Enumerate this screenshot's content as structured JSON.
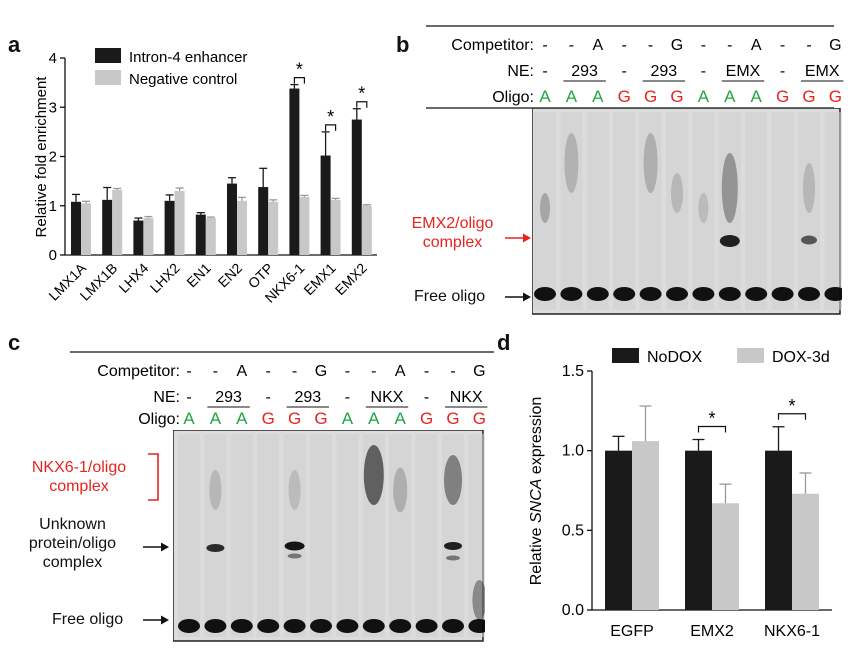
{
  "panels": {
    "a": "a",
    "b": "b",
    "c": "c",
    "d": "d"
  },
  "colors": {
    "dark_bar": "#1a1a1a",
    "light_bar": "#c8c8c8",
    "green": "#22a541",
    "red": "#e8231f"
  },
  "chart_data": [
    {
      "panel": "a",
      "type": "bar",
      "ylabel": "Relative fold enrichment",
      "ylim": [
        0,
        4
      ],
      "yticks": [
        "0",
        "1",
        "2",
        "3",
        "4"
      ],
      "categories": [
        "LMX1A",
        "LMX1B",
        "LHX4",
        "LHX2",
        "EN1",
        "EN2",
        "OTP",
        "NKX6-1",
        "EMX1",
        "EMX2"
      ],
      "series": [
        {
          "name": "Intron-4 enhancer",
          "color": "#1a1a1a",
          "values": [
            1.08,
            1.12,
            0.7,
            1.1,
            0.82,
            1.45,
            1.38,
            3.38,
            2.02,
            2.75
          ],
          "errors": [
            0.15,
            0.25,
            0.05,
            0.12,
            0.04,
            0.12,
            0.38,
            0.08,
            0.48,
            0.22
          ]
        },
        {
          "name": "Negative control",
          "color": "#c8c8c8",
          "values": [
            1.05,
            1.32,
            0.75,
            1.3,
            0.75,
            1.1,
            1.08,
            1.18,
            1.12,
            1.0
          ],
          "errors": [
            0.04,
            0.03,
            0.03,
            0.06,
            0.02,
            0.07,
            0.04,
            0.03,
            0.03,
            0.02
          ]
        }
      ],
      "significance": [
        "NKX6-1",
        "EMX1",
        "EMX2"
      ],
      "sig_mark": "*",
      "legend_position": "top"
    },
    {
      "panel": "d",
      "type": "bar",
      "ylabel_pre": "Relative ",
      "ylabel_italic": "SNCA",
      "ylabel_post": " expression",
      "ylim": [
        0,
        1.5
      ],
      "yticks": [
        "0.0",
        "0.5",
        "1.0",
        "1.5"
      ],
      "categories": [
        "EGFP",
        "EMX2",
        "NKX6-1"
      ],
      "series": [
        {
          "name": "NoDOX",
          "color": "#1a1a1a",
          "values": [
            1.0,
            1.0,
            1.0
          ],
          "errors": [
            0.09,
            0.07,
            0.15
          ]
        },
        {
          "name": "DOX-3d",
          "color": "#c8c8c8",
          "values": [
            1.06,
            0.67,
            0.73
          ],
          "errors": [
            0.22,
            0.12,
            0.13
          ]
        }
      ],
      "significance": [
        "EMX2",
        "NKX6-1"
      ],
      "sig_mark": "*",
      "legend_position": "top"
    }
  ],
  "gel_b": {
    "row_labels": [
      "Competitor:",
      "NE:",
      "Oligo:"
    ],
    "competitor": [
      "-",
      "-",
      "A",
      "-",
      "-",
      "G",
      "-",
      "-",
      "A",
      "-",
      "-",
      "G"
    ],
    "ne_groups": [
      "-",
      "293",
      "-",
      "293",
      "-",
      "EMX",
      "-",
      "EMX"
    ],
    "oligo": [
      "A",
      "A",
      "A",
      "G",
      "G",
      "G",
      "A",
      "A",
      "A",
      "G",
      "G",
      "G"
    ],
    "complex_label": "EMX2/oligo complex",
    "free_label": "Free oligo"
  },
  "gel_c": {
    "row_labels": [
      "Competitor:",
      "NE:",
      "Oligo:"
    ],
    "competitor": [
      "-",
      "-",
      "A",
      "-",
      "-",
      "G",
      "-",
      "-",
      "A",
      "-",
      "-",
      "G"
    ],
    "ne_groups": [
      "-",
      "293",
      "-",
      "293",
      "-",
      "NKX",
      "-",
      "NKX"
    ],
    "oligo": [
      "A",
      "A",
      "A",
      "G",
      "G",
      "G",
      "A",
      "A",
      "A",
      "G",
      "G",
      "G"
    ],
    "complex_label": "NKX6-1/oligo complex",
    "unknown_label": "Unknown protein/oligo complex",
    "free_label": "Free oligo"
  }
}
